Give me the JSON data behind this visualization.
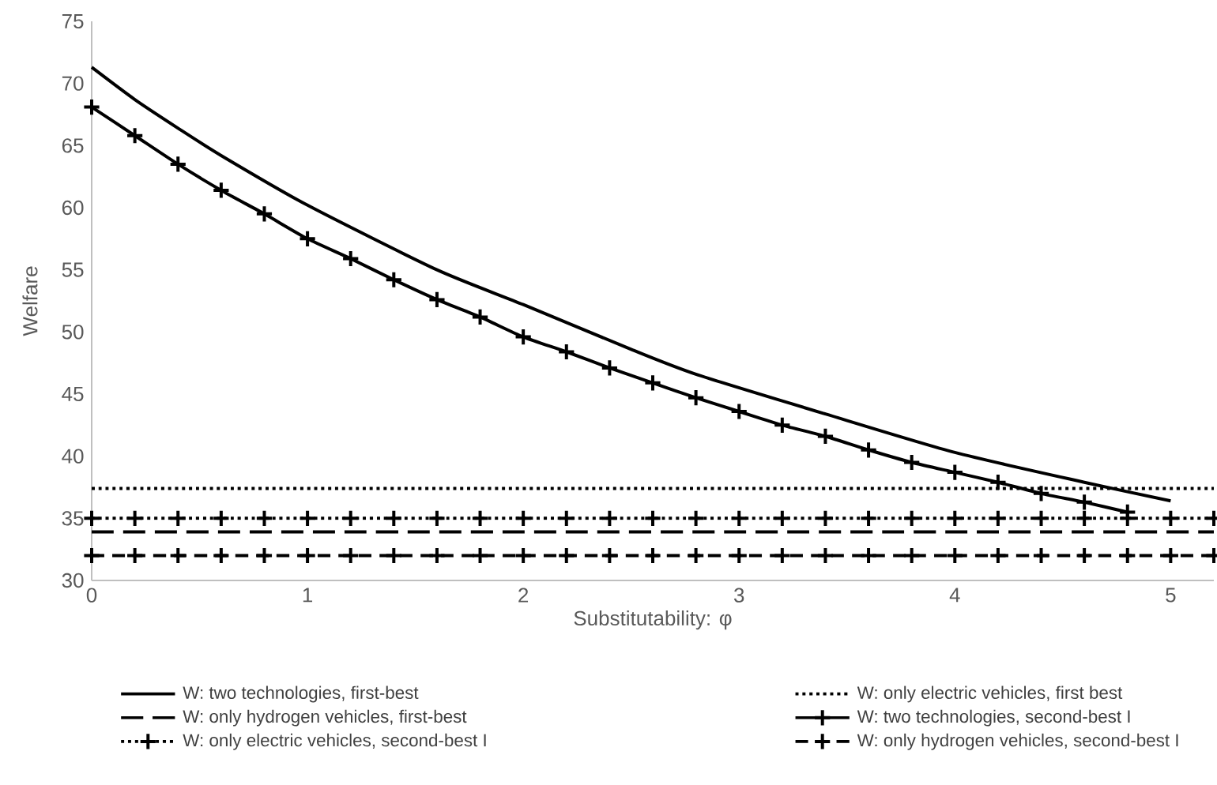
{
  "chart_data": {
    "type": "line",
    "xlabel": "Substitutability: φ",
    "ylabel": "Welfare",
    "xlim": [
      0,
      5.2
    ],
    "ylim": [
      30,
      75
    ],
    "xticks": [
      0,
      1,
      2,
      3,
      4,
      5
    ],
    "yticks": [
      30,
      35,
      40,
      45,
      50,
      55,
      60,
      65,
      70,
      75
    ],
    "grid": false,
    "legend": "bottom",
    "series": [
      {
        "name": "W: two technologies, first-best",
        "color": "#000000",
        "line_style": "solid",
        "marker": "none",
        "x": [
          0,
          0.2,
          0.4,
          0.6,
          1.0,
          1.6,
          2.0,
          2.5,
          2.8,
          3.4,
          4.0,
          4.6,
          5.0
        ],
        "values": [
          71.3,
          68.7,
          66.4,
          64.2,
          60.2,
          55.0,
          52.2,
          48.6,
          46.6,
          43.4,
          40.3,
          37.9,
          36.4
        ]
      },
      {
        "name": "W: only electric vehicles, first best",
        "color": "#000000",
        "line_style": "dotted",
        "marker": "none",
        "x": [
          0,
          5.2
        ],
        "values": [
          37.4,
          37.4
        ]
      },
      {
        "name": "W: only hydrogen vehicles, first-best",
        "color": "#000000",
        "line_style": "dashed",
        "marker": "none",
        "x": [
          0,
          5.2
        ],
        "values": [
          33.9,
          33.9
        ]
      },
      {
        "name": "W: two technologies, second-best I",
        "color": "#000000",
        "line_style": "solid",
        "marker": "cross",
        "x": [
          0,
          0.2,
          0.4,
          0.6,
          0.8,
          1.0,
          1.2,
          1.4,
          1.6,
          1.8,
          2.0,
          2.2,
          2.4,
          2.6,
          2.8,
          3.0,
          3.2,
          3.4,
          3.6,
          3.8,
          4.0,
          4.2,
          4.4,
          4.6,
          4.8
        ],
        "values": [
          68.1,
          65.8,
          63.5,
          61.4,
          59.5,
          57.5,
          55.9,
          54.2,
          52.6,
          51.2,
          49.6,
          48.4,
          47.1,
          45.9,
          44.7,
          43.6,
          42.5,
          41.6,
          40.5,
          39.5,
          38.7,
          37.9,
          37.0,
          36.3,
          35.5
        ]
      },
      {
        "name": "W: only electric vehicles, second-best I",
        "color": "#000000",
        "line_style": "dotted",
        "marker": "cross",
        "x": [
          0,
          0.2,
          0.4,
          0.6,
          0.8,
          1.0,
          1.2,
          1.4,
          1.6,
          1.8,
          2.0,
          2.2,
          2.4,
          2.6,
          2.8,
          3.0,
          3.2,
          3.4,
          3.6,
          3.8,
          4.0,
          4.2,
          4.4,
          4.6,
          4.8,
          5.0,
          5.2
        ],
        "values": [
          35,
          35,
          35,
          35,
          35,
          35,
          35,
          35,
          35,
          35,
          35,
          35,
          35,
          35,
          35,
          35,
          35,
          35,
          35,
          35,
          35,
          35,
          35,
          35,
          35,
          35,
          35
        ]
      },
      {
        "name": "W: only hydrogen vehicles, second-best I",
        "color": "#000000",
        "line_style": "dashed",
        "marker": "cross",
        "x": [
          0,
          0.2,
          0.4,
          0.6,
          0.8,
          1.0,
          1.2,
          1.4,
          1.6,
          1.8,
          2.0,
          2.2,
          2.4,
          2.6,
          2.8,
          3.0,
          3.2,
          3.4,
          3.6,
          3.8,
          4.0,
          4.2,
          4.4,
          4.6,
          4.8,
          5.0,
          5.2
        ],
        "values": [
          32,
          32,
          32,
          32,
          32,
          32,
          32,
          32,
          32,
          32,
          32,
          32,
          32,
          32,
          32,
          32,
          32,
          32,
          32,
          32,
          32,
          32,
          32,
          32,
          32,
          32,
          32
        ]
      }
    ]
  }
}
